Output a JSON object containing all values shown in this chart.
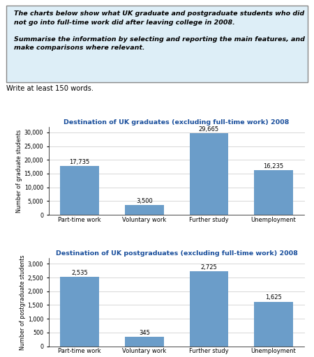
{
  "prompt_text": "The charts below show what UK graduate and postgraduate students who did\nnot go into full-time work did after leaving college in 2008.\n\nSummarise the information by selecting and reporting the main features, and\nmake comparisons where relevant.",
  "write_prompt": "Write at least 150 words.",
  "chart1_title": "Destination of UK graduates (excluding full-time work) 2008",
  "chart2_title": "Destination of UK postgraduates (excluding full-time work) 2008",
  "categories": [
    "Part-time work",
    "Voluntary work",
    "Further study",
    "Unemployment"
  ],
  "grad_values": [
    17735,
    3500,
    29665,
    16235
  ],
  "postgrad_values": [
    2535,
    345,
    2725,
    1625
  ],
  "grad_labels": [
    "17,735",
    "3,500",
    "29,665",
    "16,235"
  ],
  "postgrad_labels": [
    "2,535",
    "345",
    "2,725",
    "1,625"
  ],
  "bar_color": "#6b9dc9",
  "grad_ylabel": "Number of graduate students",
  "postgrad_ylabel": "Number of postgraduate students",
  "grad_ylim": [
    0,
    32000
  ],
  "postgrad_ylim": [
    0,
    3200
  ],
  "grad_yticks": [
    0,
    5000,
    10000,
    15000,
    20000,
    25000,
    30000
  ],
  "postgrad_yticks": [
    0,
    500,
    1000,
    1500,
    2000,
    2500,
    3000
  ],
  "grad_yticklabels": [
    "0",
    "5,000",
    "10,000",
    "15,000",
    "20,000",
    "25,000",
    "30,000"
  ],
  "postgrad_yticklabels": [
    "0",
    "500",
    "1,000",
    "1,500",
    "2,000",
    "2,500",
    "3,000"
  ],
  "box_bg_color": "#ddeef7",
  "box_border_color": "#888888",
  "title_color": "#1a4f9c",
  "bg_color": "#ffffff",
  "grid_color": "#c8c8c8"
}
